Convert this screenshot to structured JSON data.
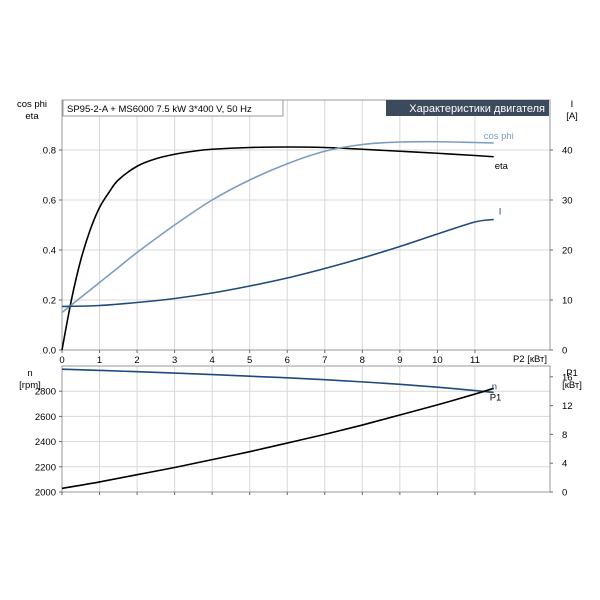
{
  "chart_data": [
    {
      "type": "line",
      "header_label": "SP95-2-A + MS6000   7.5 kW   3*400 V, 50 Hz",
      "title": "Характеристики двигателя",
      "xlabel": "P2 [кВт]",
      "x_ticks": [
        "0",
        "1",
        "2",
        "3",
        "4",
        "5",
        "6",
        "7",
        "8",
        "9",
        "10",
        "11"
      ],
      "xlim": [
        0,
        13
      ],
      "ylabel_left": [
        "cos phi",
        "eta"
      ],
      "ylim_left": [
        0,
        1.0
      ],
      "y_ticks_left": [
        "0.0",
        "0.2",
        "0.4",
        "0.6",
        "0.8"
      ],
      "ylabel_right": [
        "I",
        "[A]"
      ],
      "ylim_right": [
        0,
        50
      ],
      "y_ticks_right": [
        "0",
        "10",
        "20",
        "30",
        "40"
      ],
      "grid": true,
      "series": [
        {
          "name": "eta",
          "axis": "left",
          "color": "#000000",
          "x": [
            0,
            0.25,
            0.5,
            0.75,
            1,
            1.25,
            1.5,
            2,
            2.5,
            3,
            3.5,
            4,
            5,
            6,
            7,
            8,
            9,
            10,
            11,
            11.5
          ],
          "y": [
            0,
            0.2,
            0.36,
            0.48,
            0.57,
            0.63,
            0.68,
            0.735,
            0.765,
            0.783,
            0.795,
            0.803,
            0.81,
            0.812,
            0.81,
            0.803,
            0.795,
            0.787,
            0.778,
            0.773
          ]
        },
        {
          "name": "cos phi",
          "axis": "left",
          "color": "#7a9ec2",
          "x": [
            0,
            0.5,
            1,
            1.5,
            2,
            3,
            4,
            5,
            6,
            7,
            8,
            9,
            10,
            11,
            11.5
          ],
          "y": [
            0.15,
            0.21,
            0.27,
            0.33,
            0.39,
            0.5,
            0.6,
            0.68,
            0.745,
            0.795,
            0.822,
            0.832,
            0.833,
            0.83,
            0.828
          ]
        },
        {
          "name": "I",
          "axis": "right",
          "color": "#1f4a7a",
          "x": [
            0,
            1,
            2,
            3,
            4,
            5,
            6,
            7,
            8,
            9,
            10,
            11,
            11.5
          ],
          "y": [
            8.7,
            8.9,
            9.5,
            10.3,
            11.4,
            12.8,
            14.4,
            16.3,
            18.4,
            20.7,
            23.2,
            25.6,
            26.1
          ]
        }
      ]
    },
    {
      "type": "line",
      "x_ticks": [
        "0",
        "1",
        "2",
        "3",
        "4",
        "5",
        "6",
        "7",
        "8",
        "9",
        "10",
        "11"
      ],
      "xlim": [
        0,
        13
      ],
      "ylabel_left": [
        "n",
        "[rpm]"
      ],
      "ylim_left": [
        2000,
        3000
      ],
      "y_ticks_left": [
        "2000",
        "2200",
        "2400",
        "2600",
        "2800"
      ],
      "ylabel_right": [
        "P1",
        "[кВт]"
      ],
      "ylim_right": [
        0,
        17.5
      ],
      "y_ticks_right": [
        "0",
        "4",
        "8",
        "12",
        "16"
      ],
      "grid": true,
      "series": [
        {
          "name": "n",
          "axis": "left",
          "color": "#1f4a7a",
          "x": [
            0,
            1,
            2,
            3,
            4,
            5,
            6,
            7,
            8,
            9,
            10,
            11,
            11.5
          ],
          "y": [
            2975,
            2965,
            2955,
            2944,
            2932,
            2919,
            2906,
            2891,
            2874,
            2855,
            2832,
            2805,
            2790
          ]
        },
        {
          "name": "P1",
          "axis": "right",
          "color": "#000000",
          "x": [
            0,
            1,
            2,
            3,
            4,
            5,
            6,
            7,
            8,
            9,
            10,
            11,
            11.5
          ],
          "y": [
            0.5,
            1.4,
            2.4,
            3.4,
            4.5,
            5.6,
            6.8,
            8.0,
            9.3,
            10.7,
            12.1,
            13.6,
            14.4
          ]
        }
      ]
    }
  ]
}
